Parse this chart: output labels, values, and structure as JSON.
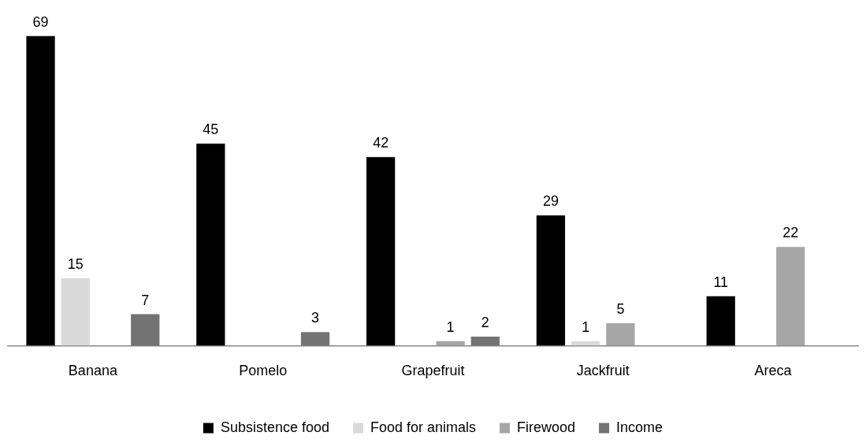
{
  "chart_data": {
    "type": "bar",
    "categories": [
      "Banana",
      "Pomelo",
      "Grapefruit",
      "Jackfruit",
      "Areca"
    ],
    "series": [
      {
        "name": "Subsistence food",
        "color": "#000000",
        "values": [
          69,
          45,
          42,
          29,
          11
        ]
      },
      {
        "name": "Food for animals",
        "color": "#d9d9d9",
        "values": [
          15,
          null,
          null,
          1,
          null
        ]
      },
      {
        "name": "Firewood",
        "color": "#a6a6a6",
        "values": [
          null,
          null,
          1,
          5,
          22
        ]
      },
      {
        "name": "Income",
        "color": "#737373",
        "values": [
          7,
          3,
          2,
          null,
          null
        ]
      }
    ],
    "data_labels": true,
    "legend": "bottom",
    "grid": false,
    "tick_labels": "x"
  }
}
